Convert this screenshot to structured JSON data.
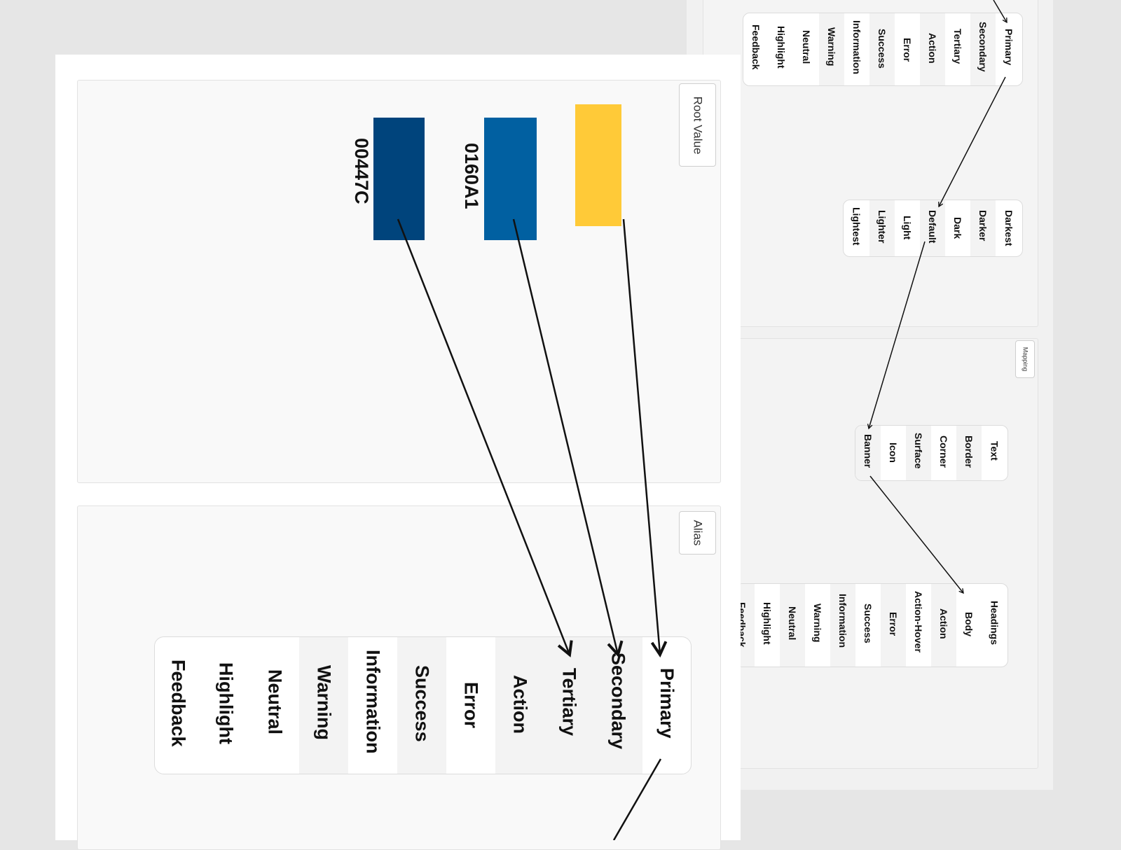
{
  "root_panel": {
    "label": "Root Value",
    "swatches": [
      {
        "color": "#FFCA38",
        "hex": ""
      },
      {
        "color": "#0160A1",
        "hex": "0160A1"
      },
      {
        "color": "#00447C",
        "hex": "00447C"
      }
    ]
  },
  "alias_panel": {
    "label": "Alias",
    "items": [
      "Primary",
      "Secondary",
      "Tertiary",
      "Action",
      "Error",
      "Success",
      "Information",
      "Warning",
      "Neutral",
      "Highlight",
      "Feedback"
    ]
  },
  "back_alias_list": {
    "items": [
      "Primary",
      "Secondary",
      "Tertiary",
      "Action",
      "Error",
      "Success",
      "Information",
      "Warning",
      "Neutral",
      "Highlight",
      "Feedback"
    ]
  },
  "shade_list": {
    "items": [
      "Darkest",
      "Darker",
      "Dark",
      "Default",
      "Light",
      "Lighter",
      "Lightest"
    ]
  },
  "mapping_panel": {
    "label": "Mapping",
    "property_list": [
      "Text",
      "Border",
      "Corner",
      "Surface",
      "Icon",
      "Banner"
    ],
    "usage_list": [
      "Headings",
      "Body",
      "Action",
      "Action-Hover",
      "Error",
      "Success",
      "Information",
      "Warning",
      "Neutral",
      "Highlight",
      "Feedback"
    ]
  }
}
